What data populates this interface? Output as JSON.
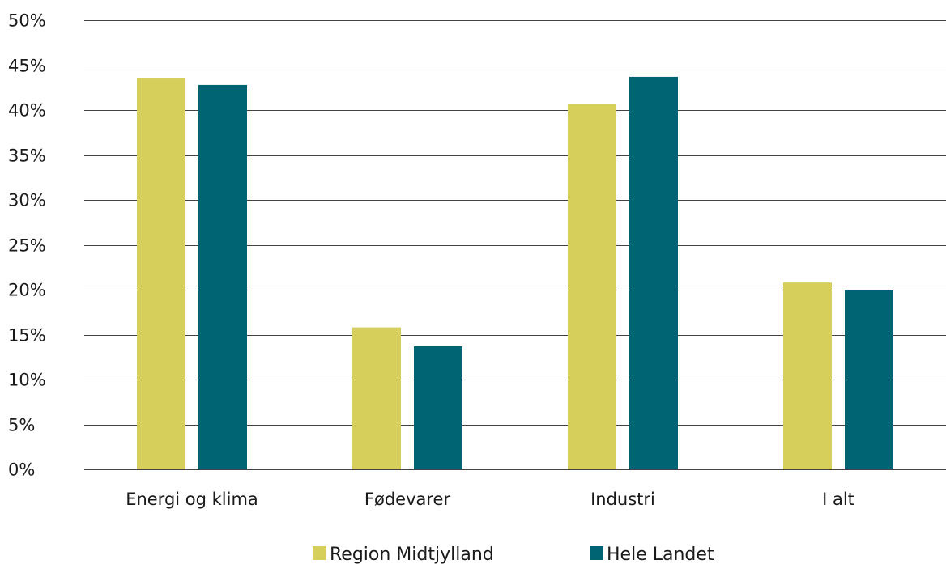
{
  "chart_data": {
    "type": "bar",
    "title": "",
    "xlabel": "",
    "ylabel": "",
    "ylim": [
      0,
      50
    ],
    "y_ticks": [
      0,
      5,
      10,
      15,
      20,
      25,
      30,
      35,
      40,
      45,
      50
    ],
    "y_tick_format": "{v}%",
    "grid": true,
    "legend_position": "bottom",
    "categories": [
      "Energi og klima",
      "Fødevarer",
      "Industri",
      "I alt"
    ],
    "series": [
      {
        "name": "Region Midtjylland",
        "color": "#d6cf5c",
        "values": [
          43.6,
          15.8,
          40.7,
          20.8
        ]
      },
      {
        "name": "Hele Landet",
        "color": "#006473",
        "values": [
          42.8,
          13.7,
          43.7,
          20.0
        ]
      }
    ]
  }
}
